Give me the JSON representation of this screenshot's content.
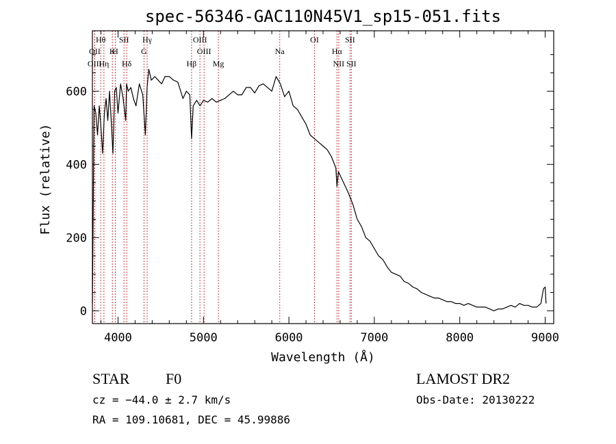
{
  "chart_data": {
    "type": "line",
    "title": "spec-56346-GAC110N45V1_sp15-051.fits",
    "xlabel": "Wavelength (Å)",
    "ylabel": "Flux (relative)",
    "xlim": [
      3700,
      9100
    ],
    "ylim": [
      -35,
      765
    ],
    "xticks": [
      4000,
      5000,
      6000,
      7000,
      8000,
      9000
    ],
    "yticks": [
      0,
      200,
      400,
      600
    ],
    "grid": false,
    "line_color": "#000000",
    "marker_color": "#c83c3c",
    "series": [
      {
        "x": [
          3700,
          3720,
          3740,
          3760,
          3780,
          3800,
          3820,
          3840,
          3860,
          3880,
          3900,
          3920,
          3940,
          3960,
          3980,
          4000,
          4030,
          4060,
          4090,
          4100,
          4120,
          4150,
          4180,
          4210,
          4250,
          4290,
          4320,
          4340,
          4360,
          4390,
          4430,
          4470,
          4510,
          4550,
          4600,
          4650,
          4700,
          4760,
          4800,
          4840,
          4861,
          4880,
          4920,
          4960,
          5000,
          5050,
          5100,
          5150,
          5200,
          5250,
          5300,
          5350,
          5400,
          5450,
          5500,
          5550,
          5600,
          5650,
          5700,
          5750,
          5800,
          5850,
          5900,
          5950,
          6000,
          6050,
          6100,
          6150,
          6200,
          6250,
          6300,
          6350,
          6400,
          6450,
          6500,
          6550,
          6563,
          6580,
          6620,
          6660,
          6700,
          6750,
          6800,
          6850,
          6900,
          6950,
          7000,
          7050,
          7100,
          7150,
          7200,
          7250,
          7300,
          7350,
          7400,
          7450,
          7500,
          7550,
          7600,
          7650,
          7700,
          7750,
          7800,
          7850,
          7900,
          7950,
          8000,
          8050,
          8100,
          8150,
          8200,
          8250,
          8300,
          8350,
          8400,
          8450,
          8500,
          8550,
          8600,
          8650,
          8700,
          8750,
          8800,
          8850,
          8900,
          8950,
          8980,
          9000,
          9010
        ],
        "y": [
          20,
          560,
          540,
          480,
          560,
          500,
          430,
          540,
          580,
          520,
          600,
          520,
          430,
          600,
          610,
          540,
          620,
          580,
          520,
          620,
          600,
          610,
          580,
          560,
          620,
          590,
          480,
          610,
          660,
          630,
          640,
          630,
          620,
          640,
          640,
          630,
          625,
          580,
          600,
          590,
          470,
          560,
          575,
          560,
          575,
          570,
          580,
          570,
          575,
          580,
          590,
          600,
          590,
          590,
          610,
          610,
          595,
          615,
          620,
          610,
          600,
          640,
          620,
          585,
          600,
          560,
          550,
          530,
          510,
          480,
          470,
          460,
          450,
          440,
          420,
          390,
          340,
          380,
          360,
          340,
          320,
          290,
          250,
          230,
          200,
          190,
          170,
          150,
          140,
          120,
          105,
          100,
          95,
          80,
          75,
          65,
          60,
          50,
          45,
          40,
          35,
          35,
          30,
          25,
          25,
          20,
          20,
          15,
          20,
          15,
          10,
          10,
          10,
          5,
          0,
          5,
          5,
          10,
          15,
          10,
          20,
          15,
          15,
          10,
          10,
          20,
          60,
          65,
          20
        ]
      }
    ],
    "spectral_lines": [
      {
        "label": "Hθ",
        "wave": 3798,
        "row": 1
      },
      {
        "label": "OII",
        "wave": 3727,
        "row": 2
      },
      {
        "label": "OIII",
        "wave": 3726,
        "row": 3
      },
      {
        "label": "Hη",
        "wave": 3835,
        "row": 3
      },
      {
        "label": "SII",
        "wave": 4070,
        "row": 1
      },
      {
        "label": "H",
        "wave": 3968,
        "row": 2
      },
      {
        "label": "K",
        "wave": 3934,
        "row": 2
      },
      {
        "label": "Hδ",
        "wave": 4102,
        "row": 3
      },
      {
        "label": "Hγ",
        "wave": 4341,
        "row": 1
      },
      {
        "label": "G",
        "wave": 4304,
        "row": 2
      },
      {
        "label": "OIII",
        "wave": 4959,
        "row": 1
      },
      {
        "label": "OIII",
        "wave": 5007,
        "row": 2
      },
      {
        "label": "Hβ",
        "wave": 4861,
        "row": 3
      },
      {
        "label": "Mg",
        "wave": 5175,
        "row": 3
      },
      {
        "label": "Na",
        "wave": 5893,
        "row": 2
      },
      {
        "label": "OI",
        "wave": 6300,
        "row": 1
      },
      {
        "label": "Hα",
        "wave": 6563,
        "row": 2
      },
      {
        "label": "NII",
        "wave": 6583,
        "row": 3
      },
      {
        "label": "SII",
        "wave": 6716,
        "row": 1
      },
      {
        "label": "SII",
        "wave": 6731,
        "row": 3
      }
    ]
  },
  "info": {
    "obj_class": "STAR",
    "subclass": "F0",
    "survey": "LAMOST DR2",
    "cz": "cz = −44.0 ± 2.7 km/s",
    "obs_date": "Obs-Date: 20130222",
    "coords": "RA = 109.10681, DEC =  45.99886"
  }
}
